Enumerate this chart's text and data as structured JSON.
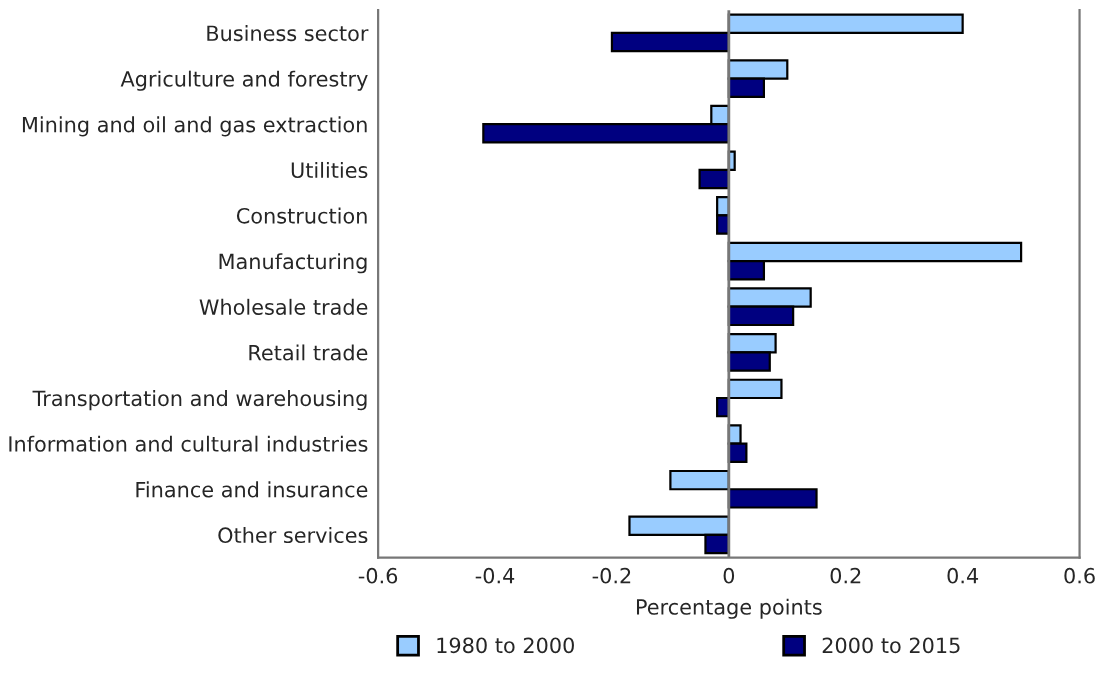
{
  "chart_data": {
    "type": "bar",
    "orientation": "horizontal",
    "xlabel": "Percentage points",
    "categories": [
      "Business sector",
      "Agriculture and forestry",
      "Mining and oil and gas extraction",
      "Utilities",
      "Construction",
      "Manufacturing",
      "Wholesale trade",
      "Retail trade",
      "Transportation and warehousing",
      "Information and cultural industries",
      "Finance and insurance",
      "Other services"
    ],
    "series": [
      {
        "name": "1980 to 2000",
        "color": "#99ccff",
        "values": [
          0.4,
          0.1,
          -0.03,
          0.01,
          -0.02,
          0.5,
          0.14,
          0.08,
          0.09,
          0.02,
          -0.1,
          -0.17
        ]
      },
      {
        "name": "2000 to 2015",
        "color": "#000080",
        "values": [
          -0.2,
          0.06,
          -0.42,
          -0.05,
          -0.02,
          0.06,
          0.11,
          0.07,
          -0.02,
          0.03,
          0.15,
          -0.04
        ]
      }
    ],
    "xlim": [
      -0.6,
      0.6
    ],
    "xticks": [
      {
        "value": -0.6,
        "label": "-0.6"
      },
      {
        "value": -0.4,
        "label": "-0.4"
      },
      {
        "value": -0.2,
        "label": "-0.2"
      },
      0,
      0.2,
      0.4,
      0.6
    ],
    "legend": "bottom"
  }
}
